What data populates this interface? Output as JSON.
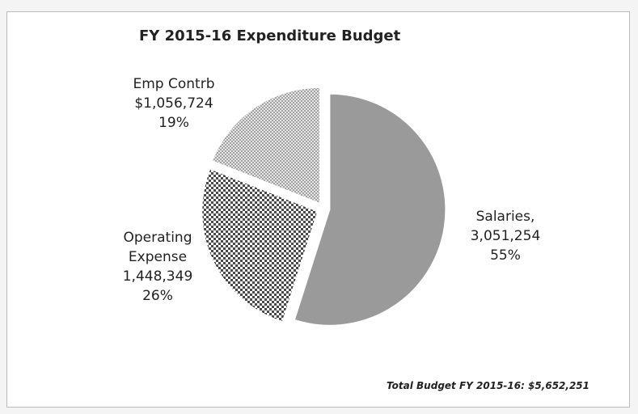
{
  "chart_data": {
    "type": "pie",
    "title": "FY 2015-16 Expenditure Budget",
    "categories": [
      "Salaries,",
      "Operating Expense",
      "Emp Contrb"
    ],
    "values": [
      3051254,
      1448349,
      1056724
    ],
    "value_labels": [
      "3,051,254",
      "1,448,349",
      "$1,056,724"
    ],
    "percents": [
      55,
      26,
      19
    ],
    "percent_labels": [
      "55%",
      "26%",
      "19%"
    ],
    "colors": [
      "#9a9a9a",
      "#4a4a4a",
      "#8c8c8c"
    ],
    "note": "Total Budget FY 2015-16: $5,652,251"
  }
}
